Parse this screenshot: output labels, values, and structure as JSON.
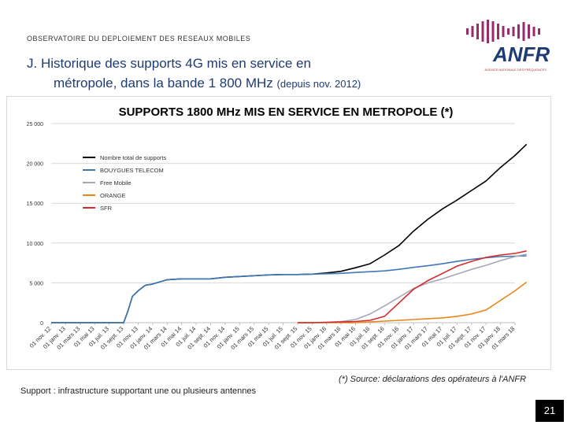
{
  "header": {
    "subtitle": "OBSERVATOIRE DU DEPLOIEMENT DES RESEAUX MOBILES",
    "title_line1": "J. Historique des supports 4G mis en service en",
    "title_line2": "métropole, dans la bande 1 800 MHz",
    "title_suffix": "(depuis nov. 2012)"
  },
  "logo": {
    "text": "ANFR",
    "tagline": "AGENCE NATIONALE DES FRÉQUENCES",
    "colors": {
      "bars": "#9b2a6b",
      "text": "#1f3b73",
      "tagline": "#b5322b"
    }
  },
  "chart_data": {
    "type": "line",
    "title": "SUPPORTS 1800 MHz MIS EN SERVICE EN METROPOLE (*)",
    "xlabel": "",
    "ylabel": "",
    "ylim": [
      0,
      25000
    ],
    "yticks": [
      0,
      5000,
      10000,
      15000,
      20000,
      25000
    ],
    "ytick_labels": [
      "0",
      "5 000",
      "10 000",
      "15 000",
      "20 000",
      "25 000"
    ],
    "grid": true,
    "legend_position": "top-left",
    "xtick_labels": [
      "01 nov. 12",
      "01 janv. 13",
      "01 mars 13",
      "01 mai 13",
      "01 juil. 13",
      "01 sept. 13",
      "01 nov. 13",
      "01 janv. 14",
      "01 mars 14",
      "01 mai 14",
      "01 juil. 14",
      "01 sept. 14",
      "01 nov. 14",
      "01 janv. 15",
      "01 mars 15",
      "01 mai 15",
      "01 juil. 15",
      "01 sept. 15",
      "01 nov. 15",
      "01 janv. 16",
      "01 mars 16",
      "01 mai 16",
      "01 juil. 16",
      "01 sept. 16",
      "01 nov. 16",
      "01 janv. 17",
      "01 mars 17",
      "01 mai 17",
      "01 juil. 17",
      "01 sept. 17",
      "01 nov. 17",
      "01 janv. 18",
      "01 mars 18"
    ],
    "series": [
      {
        "name": "Nombre total de supports",
        "color": "#000000",
        "x": [
          0,
          5,
          5.3,
          5.6,
          6,
          6.5,
          7,
          8,
          9,
          10,
          11,
          12,
          13,
          14,
          15,
          16,
          17,
          18,
          19,
          20,
          21,
          22,
          23,
          24,
          25,
          26,
          27,
          28,
          29,
          30,
          31,
          32,
          32.8
        ],
        "y": [
          0,
          0,
          1500,
          3300,
          4000,
          4700,
          4850,
          5400,
          5500,
          5500,
          5500,
          5700,
          5800,
          5900,
          6000,
          6050,
          6050,
          6100,
          6250,
          6450,
          6900,
          7400,
          8500,
          9700,
          11500,
          13000,
          14300,
          15400,
          16600,
          17800,
          19500,
          21000,
          22400
        ]
      },
      {
        "name": "BOUYGUES TELECOM",
        "color": "#3f78b5",
        "x": [
          0,
          5,
          5.3,
          5.6,
          6,
          6.5,
          7,
          8,
          9,
          10,
          11,
          12,
          13,
          14,
          15,
          16,
          17,
          18,
          19,
          20,
          21,
          22,
          23,
          24,
          25,
          26,
          27,
          28,
          29,
          30,
          31,
          32,
          32.8
        ],
        "y": [
          0,
          0,
          1500,
          3300,
          4000,
          4700,
          4850,
          5400,
          5500,
          5500,
          5500,
          5700,
          5800,
          5900,
          6000,
          6050,
          6050,
          6100,
          6150,
          6200,
          6300,
          6400,
          6500,
          6700,
          6950,
          7150,
          7400,
          7700,
          7950,
          8150,
          8300,
          8350,
          8400
        ]
      },
      {
        "name": "Free Mobile",
        "color": "#a6a6b6",
        "x": [
          17,
          18,
          19,
          20,
          21,
          22,
          23,
          24,
          25,
          26,
          27,
          28,
          29,
          30,
          31,
          32,
          32.8
        ],
        "y": [
          0,
          0,
          50,
          150,
          400,
          1100,
          2100,
          3200,
          4300,
          5000,
          5500,
          6100,
          6700,
          7200,
          7800,
          8300,
          8600
        ]
      },
      {
        "name": "ORANGE",
        "color": "#e8871e",
        "x": [
          17,
          18,
          19,
          20,
          21,
          22,
          23,
          24,
          25,
          26,
          27,
          28,
          29,
          30,
          31,
          32,
          32.8
        ],
        "y": [
          0,
          0,
          0,
          0,
          0,
          100,
          200,
          300,
          400,
          500,
          600,
          800,
          1100,
          1600,
          2800,
          4000,
          5100
        ]
      },
      {
        "name": "SFR",
        "color": "#d62a2a",
        "x": [
          17,
          18,
          19,
          20,
          21,
          22,
          23,
          24,
          25,
          26,
          27,
          28,
          29,
          30,
          31,
          32,
          32.8
        ],
        "y": [
          0,
          0,
          50,
          100,
          150,
          300,
          800,
          2500,
          4200,
          5300,
          6200,
          7100,
          7700,
          8200,
          8500,
          8700,
          9000
        ]
      }
    ]
  },
  "footnote": "(*) Source: déclarations des opérateurs à l'ANFR",
  "support_note": "Support : infrastructure supportant une ou plusieurs antennes",
  "page_number": "21"
}
